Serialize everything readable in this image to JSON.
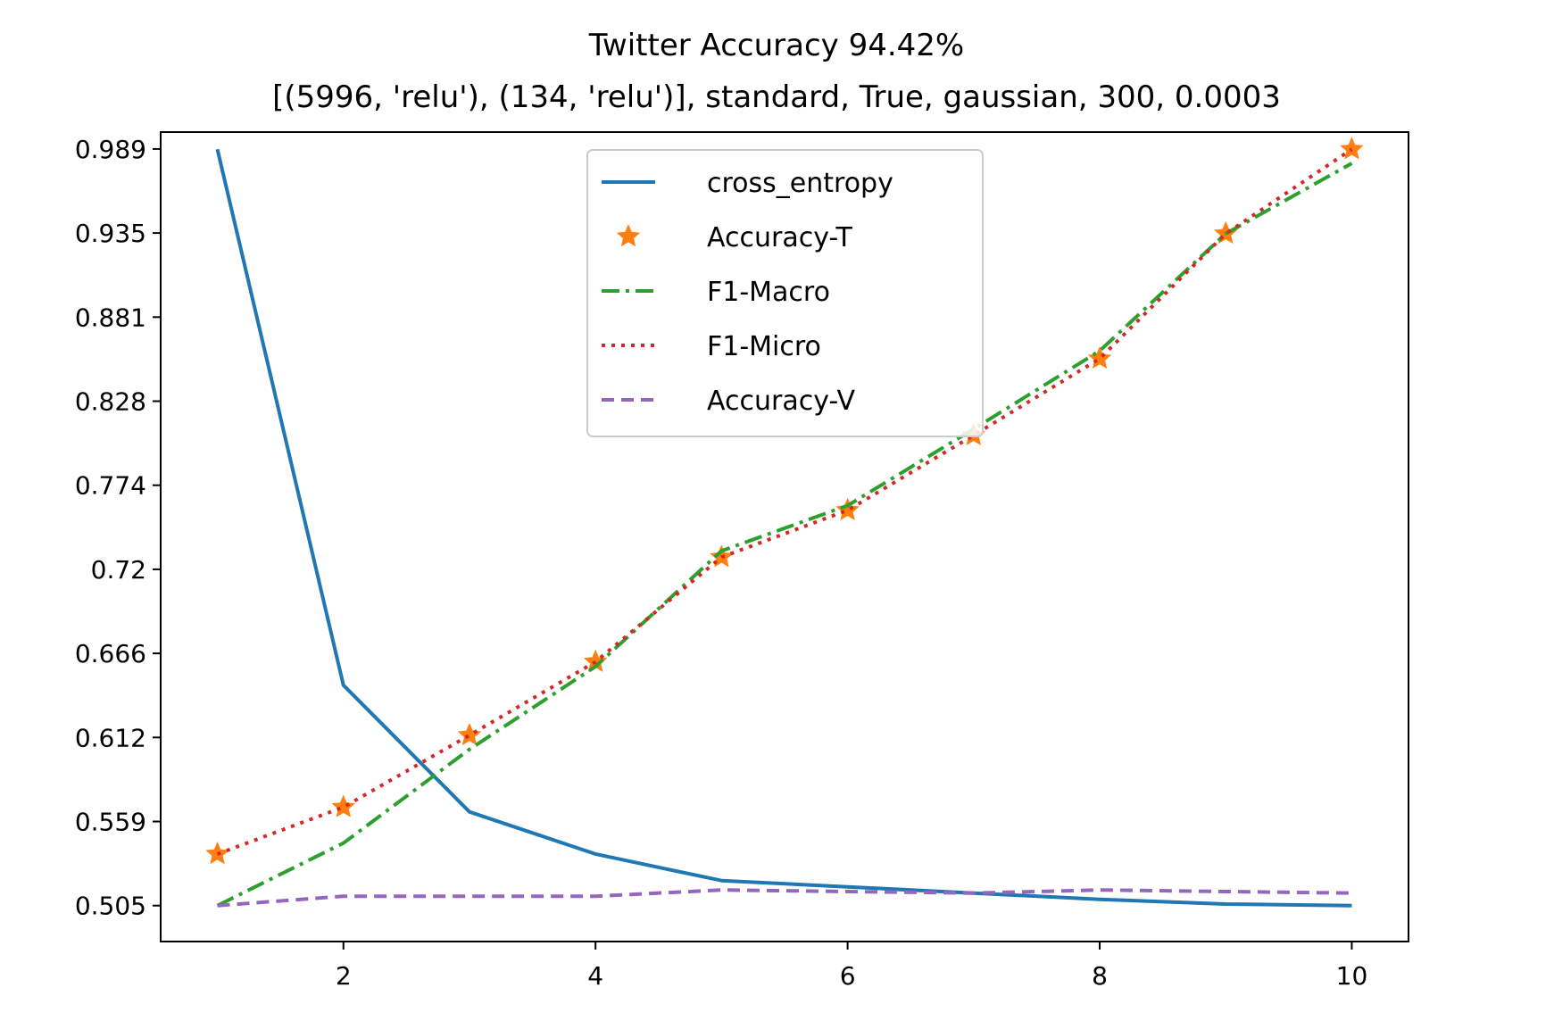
{
  "chart_data": {
    "type": "line",
    "title": "Twitter Accuracy 94.42%",
    "subtitle": "[(5996, 'relu'), (134, 'relu')], standard, True, gaussian, 300, 0.0003",
    "xlabel": "",
    "ylabel": "",
    "x": [
      1,
      2,
      3,
      4,
      5,
      6,
      7,
      8,
      9,
      10
    ],
    "xlim": [
      0.55,
      10.45
    ],
    "ylim": [
      0.482,
      1.0
    ],
    "x_ticks": [
      2,
      4,
      6,
      8,
      10
    ],
    "x_tick_labels": [
      "2",
      "4",
      "6",
      "8",
      "10"
    ],
    "y_ticks": [
      0.505,
      0.5588,
      0.6126,
      0.6664,
      0.7202,
      0.774,
      0.8278,
      0.8816,
      0.9354,
      0.9892
    ],
    "y_tick_labels": [
      "0.505",
      "0.559",
      "0.612",
      "0.666",
      "0.72",
      "0.774",
      "0.828",
      "0.881",
      "0.935",
      "0.989"
    ],
    "grid": false,
    "legend_position": "top-center",
    "series": [
      {
        "name": "cross_entropy",
        "style": "solid",
        "marker": "none",
        "color": "#1f77b4",
        "values": [
          0.989,
          0.646,
          0.565,
          0.538,
          0.521,
          0.517,
          0.513,
          0.509,
          0.506,
          0.505
        ]
      },
      {
        "name": "Accuracy-T",
        "style": "none",
        "marker": "star",
        "color": "#ff7f0e",
        "values": [
          0.538,
          0.568,
          0.614,
          0.661,
          0.728,
          0.758,
          0.806,
          0.855,
          0.935,
          0.989
        ]
      },
      {
        "name": "F1-Macro",
        "style": "dashdot",
        "marker": "none",
        "color": "#2ca02c",
        "values": [
          0.505,
          0.545,
          0.605,
          0.658,
          0.732,
          0.761,
          0.81,
          0.86,
          0.935,
          0.98
        ]
      },
      {
        "name": "F1-Micro",
        "style": "dotted",
        "marker": "none",
        "color": "#d62728",
        "values": [
          0.538,
          0.568,
          0.614,
          0.661,
          0.728,
          0.758,
          0.806,
          0.855,
          0.935,
          0.989
        ]
      },
      {
        "name": "Accuracy-V",
        "style": "dashed",
        "marker": "none",
        "color": "#9467bd",
        "values": [
          0.505,
          0.511,
          0.511,
          0.511,
          0.515,
          0.514,
          0.513,
          0.515,
          0.514,
          0.513
        ]
      }
    ]
  }
}
